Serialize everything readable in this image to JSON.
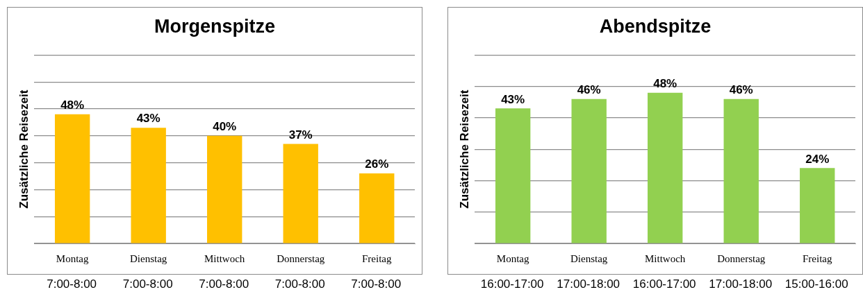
{
  "chart_data": [
    {
      "type": "bar",
      "title": "Morgenspitze",
      "ylabel": "Zusätzliche Reisezeit",
      "categories": [
        "Montag",
        "Dienstag",
        "Mittwoch",
        "Donnerstag",
        "Freitag"
      ],
      "values": [
        48,
        43,
        40,
        37,
        26
      ],
      "value_labels": [
        "48%",
        "43%",
        "40%",
        "37%",
        "26%"
      ],
      "color": "#ffc000",
      "ylim": [
        0,
        70
      ],
      "yticks": [
        {
          "value": 0,
          "label": null
        },
        {
          "value": 10,
          "label": null
        },
        {
          "value": 20,
          "label": null
        },
        {
          "value": 30,
          "label": null
        },
        {
          "value": 40,
          "label": null
        },
        {
          "value": 50,
          "label": null
        },
        {
          "value": 60,
          "label": null
        },
        {
          "value": 70,
          "label": null
        }
      ],
      "grid": "y",
      "annotations": [
        "7:00-8:00",
        "7:00-8:00",
        "7:00-8:00",
        "7:00-8:00",
        "7:00-8:00"
      ]
    },
    {
      "type": "bar",
      "title": "Abendspitze",
      "ylabel": "Zusätzliche Reisezeit",
      "categories": [
        "Montag",
        "Dienstag",
        "Mittwoch",
        "Donnerstag",
        "Freitag"
      ],
      "values": [
        43,
        46,
        48,
        46,
        24
      ],
      "value_labels": [
        "43%",
        "46%",
        "48%",
        "46%",
        "24%"
      ],
      "color": "#92d050",
      "ylim": [
        0,
        60
      ],
      "yticks": [
        {
          "value": 0,
          "label": null
        },
        {
          "value": 10,
          "label": null
        },
        {
          "value": 20,
          "label": null
        },
        {
          "value": 30,
          "label": null
        },
        {
          "value": 40,
          "label": null
        },
        {
          "value": 50,
          "label": null
        },
        {
          "value": 60,
          "label": null
        }
      ],
      "grid": "y",
      "annotations": [
        "16:00-17:00",
        "17:00-18:00",
        "16:00-17:00",
        "17:00-18:00",
        "15:00-16:00"
      ]
    }
  ]
}
